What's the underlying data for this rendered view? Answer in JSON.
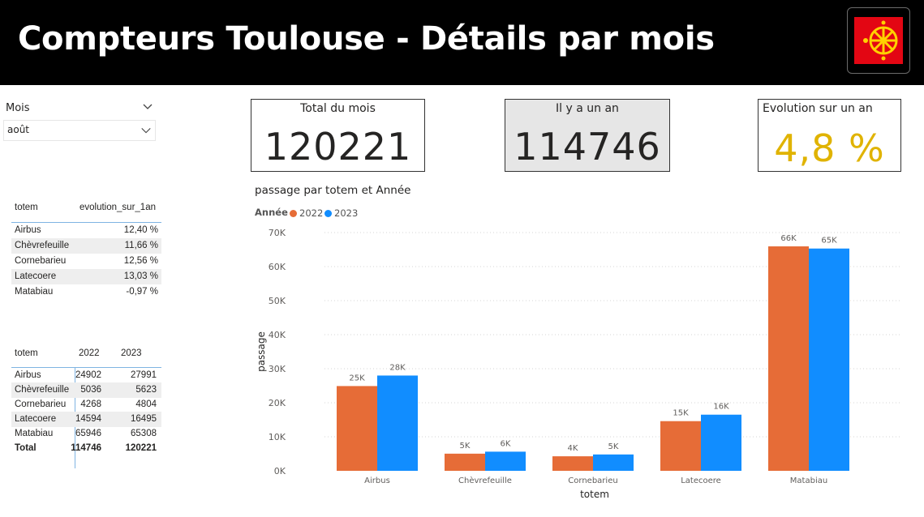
{
  "header": {
    "title": "Compteurs Toulouse - Détails par mois"
  },
  "slicer": {
    "label": "Mois",
    "value": "août"
  },
  "evolution_table": {
    "headers": [
      "totem",
      "evolution_sur_1an"
    ],
    "rows": [
      [
        "Airbus",
        "12,40 %"
      ],
      [
        "Chèvrefeuille",
        "11,66 %"
      ],
      [
        "Cornebarieu",
        "12,56 %"
      ],
      [
        "Latecoere",
        "13,03 %"
      ],
      [
        "Matabiau",
        "-0,97 %"
      ]
    ]
  },
  "year_table": {
    "headers": [
      "totem",
      "2022",
      "2023"
    ],
    "rows": [
      [
        "Airbus",
        "24902",
        "27991"
      ],
      [
        "Chèvrefeuille",
        "5036",
        "5623"
      ],
      [
        "Cornebarieu",
        "4268",
        "4804"
      ],
      [
        "Latecoere",
        "14594",
        "16495"
      ],
      [
        "Matabiau",
        "65946",
        "65308"
      ]
    ],
    "total": [
      "Total",
      "114746",
      "120221"
    ]
  },
  "cards": {
    "total": {
      "label": "Total du mois",
      "value": "120221"
    },
    "last_year": {
      "label": "Il y a un an",
      "value": "114746"
    },
    "evolution": {
      "label": "Evolution sur un an",
      "value": "4,8 %"
    }
  },
  "colors": {
    "series_2022": "#E66C37",
    "series_2023": "#118DFF",
    "evolution_value": "#E0B300",
    "card_shade": "#E6E6E6"
  },
  "chart_data": {
    "type": "bar",
    "title": "passage par totem et Année",
    "legend_title": "Année",
    "xlabel": "totem",
    "ylabel": "passage",
    "categories": [
      "Airbus",
      "Chèvrefeuille",
      "Cornebarieu",
      "Latecoere",
      "Matabiau"
    ],
    "series": [
      {
        "name": "2022",
        "values": [
          24902,
          5036,
          4268,
          14594,
          65946
        ],
        "labels": [
          "25K",
          "5K",
          "4K",
          "15K",
          "66K"
        ]
      },
      {
        "name": "2023",
        "values": [
          27991,
          5623,
          4804,
          16495,
          65308
        ],
        "labels": [
          "28K",
          "6K",
          "5K",
          "16K",
          "65K"
        ]
      }
    ],
    "yticks": [
      "0K",
      "10K",
      "20K",
      "30K",
      "40K",
      "50K",
      "60K",
      "70K"
    ],
    "ylim": [
      0,
      70000
    ],
    "grid": true,
    "legend_position": "top-left"
  }
}
